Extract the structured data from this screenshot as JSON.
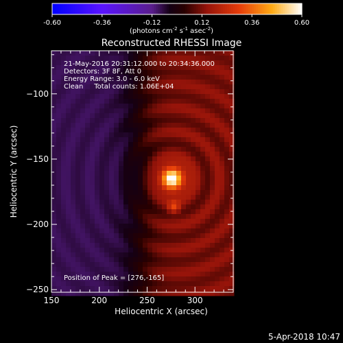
{
  "chart_data": {
    "type": "heatmap",
    "title": "Reconstructed RHESSI Image",
    "xlabel": "Heliocentric X (arcsec)",
    "ylabel": "Heliocentric Y (arcsec)",
    "xlim": [
      150,
      340
    ],
    "ylim": [
      -252,
      -67
    ],
    "xticks": [
      150,
      200,
      250,
      300
    ],
    "yticks": [
      -100,
      -150,
      -200,
      -250
    ],
    "colorbar": {
      "range": [
        -0.6,
        0.6
      ],
      "ticks": [
        "-0.60",
        "-0.36",
        "-0.12",
        "0.12",
        "0.36",
        "0.60"
      ],
      "unit_parts": [
        "(photons cm",
        "-2",
        " s",
        "-1",
        " asec",
        "-2",
        ")"
      ]
    },
    "info_lines": [
      "21-May-2016 20:31:12.000 to 20:34:36.000",
      "Detectors: 3F 8F, Att 0",
      "Energy Range: 3.0 - 6.0 keV",
      "Clean     Total counts: 1.06E+04"
    ],
    "peak_label": "Position of Peak = [276,-165]",
    "peak": {
      "x": 276,
      "y": -165,
      "value": 0.6
    },
    "secondary_source": {
      "x": 278,
      "y": -187,
      "value": 0.3
    },
    "background": {
      "left_value": -0.08,
      "right_value": 0.12,
      "ring_amplitude": 0.05
    }
  },
  "footer": {
    "date": "5-Apr-2018 10:47"
  },
  "colors": {
    "background": "#000000",
    "text": "#ffffff"
  }
}
